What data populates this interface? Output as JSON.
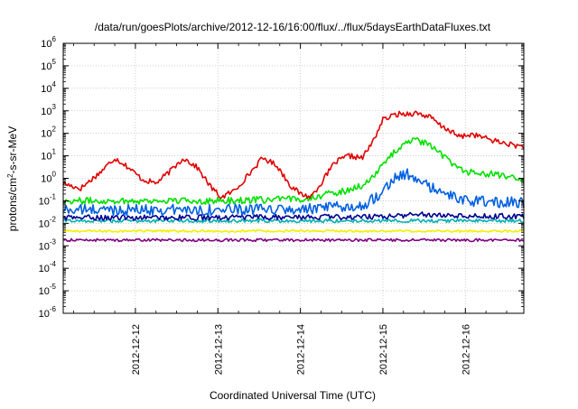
{
  "chart_data": {
    "type": "line",
    "title": "/data/run/goesPlots/archive/2012-12-16/16:00/flux/../flux/5daysEarthDataFluxes.txt",
    "xlabel": "Coordinated Universal Time (UTC)",
    "ylabel": "protons/cm²-s-sr-MeV",
    "yscale": "log",
    "ylim_exponent": [
      -6,
      6
    ],
    "y_tick_labels": [
      {
        "base": "10",
        "exp": "-6"
      },
      {
        "base": "10",
        "exp": "-5"
      },
      {
        "base": "10",
        "exp": "-4"
      },
      {
        "base": "10",
        "exp": "-3"
      },
      {
        "base": "10",
        "exp": "-2"
      },
      {
        "base": "10",
        "exp": "-1"
      },
      {
        "base": "10",
        "exp": "0"
      },
      {
        "base": "10",
        "exp": "1"
      },
      {
        "base": "10",
        "exp": "2"
      },
      {
        "base": "10",
        "exp": "3"
      },
      {
        "base": "10",
        "exp": "4"
      },
      {
        "base": "10",
        "exp": "5"
      },
      {
        "base": "10",
        "exp": "6"
      }
    ],
    "xlim": [
      "2012-12-11 03:00",
      "2012-12-16 17:00"
    ],
    "x_ticks": [
      {
        "date": "2012-12-12 00:00",
        "label": "2012-12-12"
      },
      {
        "date": "2012-12-13 00:00",
        "label": "2012-12-13"
      },
      {
        "date": "2012-12-14 00:00",
        "label": "2012-12-14"
      },
      {
        "date": "2012-12-15 00:00",
        "label": "2012-12-15"
      },
      {
        "date": "2012-12-16 00:00",
        "label": "2012-12-16"
      }
    ],
    "grid": true,
    "series": [
      {
        "color": "#e00000",
        "points": [
          [
            "2012-12-11 03:00",
            0.6
          ],
          [
            "2012-12-11 08:00",
            0.35
          ],
          [
            "2012-12-11 14:00",
            2.0
          ],
          [
            "2012-12-11 18:00",
            8.0
          ],
          [
            "2012-12-11 21:00",
            4.0
          ],
          [
            "2012-12-12 02:00",
            0.9
          ],
          [
            "2012-12-12 06:00",
            0.6
          ],
          [
            "2012-12-12 10:00",
            2.0
          ],
          [
            "2012-12-12 14:00",
            8.0
          ],
          [
            "2012-12-12 18:00",
            3.0
          ],
          [
            "2012-12-12 22:00",
            0.4
          ],
          [
            "2012-12-13 01:00",
            0.14
          ],
          [
            "2012-12-13 05:00",
            0.3
          ],
          [
            "2012-12-13 09:00",
            1.5
          ],
          [
            "2012-12-13 13:00",
            8.0
          ],
          [
            "2012-12-13 17:00",
            4.0
          ],
          [
            "2012-12-13 21:00",
            0.5
          ],
          [
            "2012-12-14 00:00",
            0.2
          ],
          [
            "2012-12-14 03:00",
            0.15
          ],
          [
            "2012-12-14 06:00",
            0.6
          ],
          [
            "2012-12-14 10:00",
            5.0
          ],
          [
            "2012-12-14 14:00",
            10.0
          ],
          [
            "2012-12-14 18:00",
            8.0
          ],
          [
            "2012-12-14 21:00",
            40.0
          ],
          [
            "2012-12-15 00:00",
            400.0
          ],
          [
            "2012-12-15 04:00",
            700.0
          ],
          [
            "2012-12-15 10:00",
            800.0
          ],
          [
            "2012-12-15 14:00",
            500.0
          ],
          [
            "2012-12-15 17:00",
            200.0
          ],
          [
            "2012-12-15 19:00",
            150.0
          ],
          [
            "2012-12-15 22:00",
            70.0
          ],
          [
            "2012-12-16 02:00",
            90.0
          ],
          [
            "2012-12-16 06:00",
            60.0
          ],
          [
            "2012-12-16 10:00",
            40.0
          ],
          [
            "2012-12-16 14:00",
            30.0
          ],
          [
            "2012-12-16 17:00",
            25.0
          ]
        ]
      },
      {
        "color": "#00e000",
        "points": [
          [
            "2012-12-11 03:00",
            0.1
          ],
          [
            "2012-12-12 00:00",
            0.1
          ],
          [
            "2012-12-13 00:00",
            0.1
          ],
          [
            "2012-12-14 00:00",
            0.12
          ],
          [
            "2012-12-14 12:00",
            0.25
          ],
          [
            "2012-12-14 18:00",
            0.5
          ],
          [
            "2012-12-14 22:00",
            1.5
          ],
          [
            "2012-12-15 02:00",
            10.0
          ],
          [
            "2012-12-15 08:00",
            50.0
          ],
          [
            "2012-12-15 12:00",
            40.0
          ],
          [
            "2012-12-15 16:00",
            15.0
          ],
          [
            "2012-12-15 20:00",
            5.0
          ],
          [
            "2012-12-16 00:00",
            2.0
          ],
          [
            "2012-12-16 08:00",
            1.5
          ],
          [
            "2012-12-16 17:00",
            0.8
          ]
        ]
      },
      {
        "color": "#0060e0",
        "points": [
          [
            "2012-12-11 03:00",
            0.04
          ],
          [
            "2012-12-12 00:00",
            0.04
          ],
          [
            "2012-12-13 00:00",
            0.04
          ],
          [
            "2012-12-14 00:00",
            0.04
          ],
          [
            "2012-12-14 18:00",
            0.06
          ],
          [
            "2012-12-14 23:00",
            0.2
          ],
          [
            "2012-12-15 03:00",
            1.0
          ],
          [
            "2012-12-15 07:00",
            1.5
          ],
          [
            "2012-12-15 12:00",
            0.6
          ],
          [
            "2012-12-15 16:00",
            0.25
          ],
          [
            "2012-12-16 00:00",
            0.1
          ],
          [
            "2012-12-16 17:00",
            0.08
          ]
        ]
      },
      {
        "color": "#000090",
        "points": [
          [
            "2012-12-11 03:00",
            0.018
          ],
          [
            "2012-12-13 00:00",
            0.018
          ],
          [
            "2012-12-14 12:00",
            0.019
          ],
          [
            "2012-12-15 00:00",
            0.02
          ],
          [
            "2012-12-15 12:00",
            0.025
          ],
          [
            "2012-12-16 00:00",
            0.022
          ],
          [
            "2012-12-16 17:00",
            0.02
          ]
        ]
      },
      {
        "color": "#00b0b0",
        "points": [
          [
            "2012-12-11 03:00",
            0.013
          ],
          [
            "2012-12-16 17:00",
            0.013
          ]
        ]
      },
      {
        "color": "#f0f000",
        "points": [
          [
            "2012-12-11 03:00",
            0.0045
          ],
          [
            "2012-12-16 17:00",
            0.0045
          ]
        ]
      },
      {
        "color": "#800080",
        "points": [
          [
            "2012-12-11 03:00",
            0.0018
          ],
          [
            "2012-12-16 17:00",
            0.0018
          ]
        ]
      }
    ]
  }
}
